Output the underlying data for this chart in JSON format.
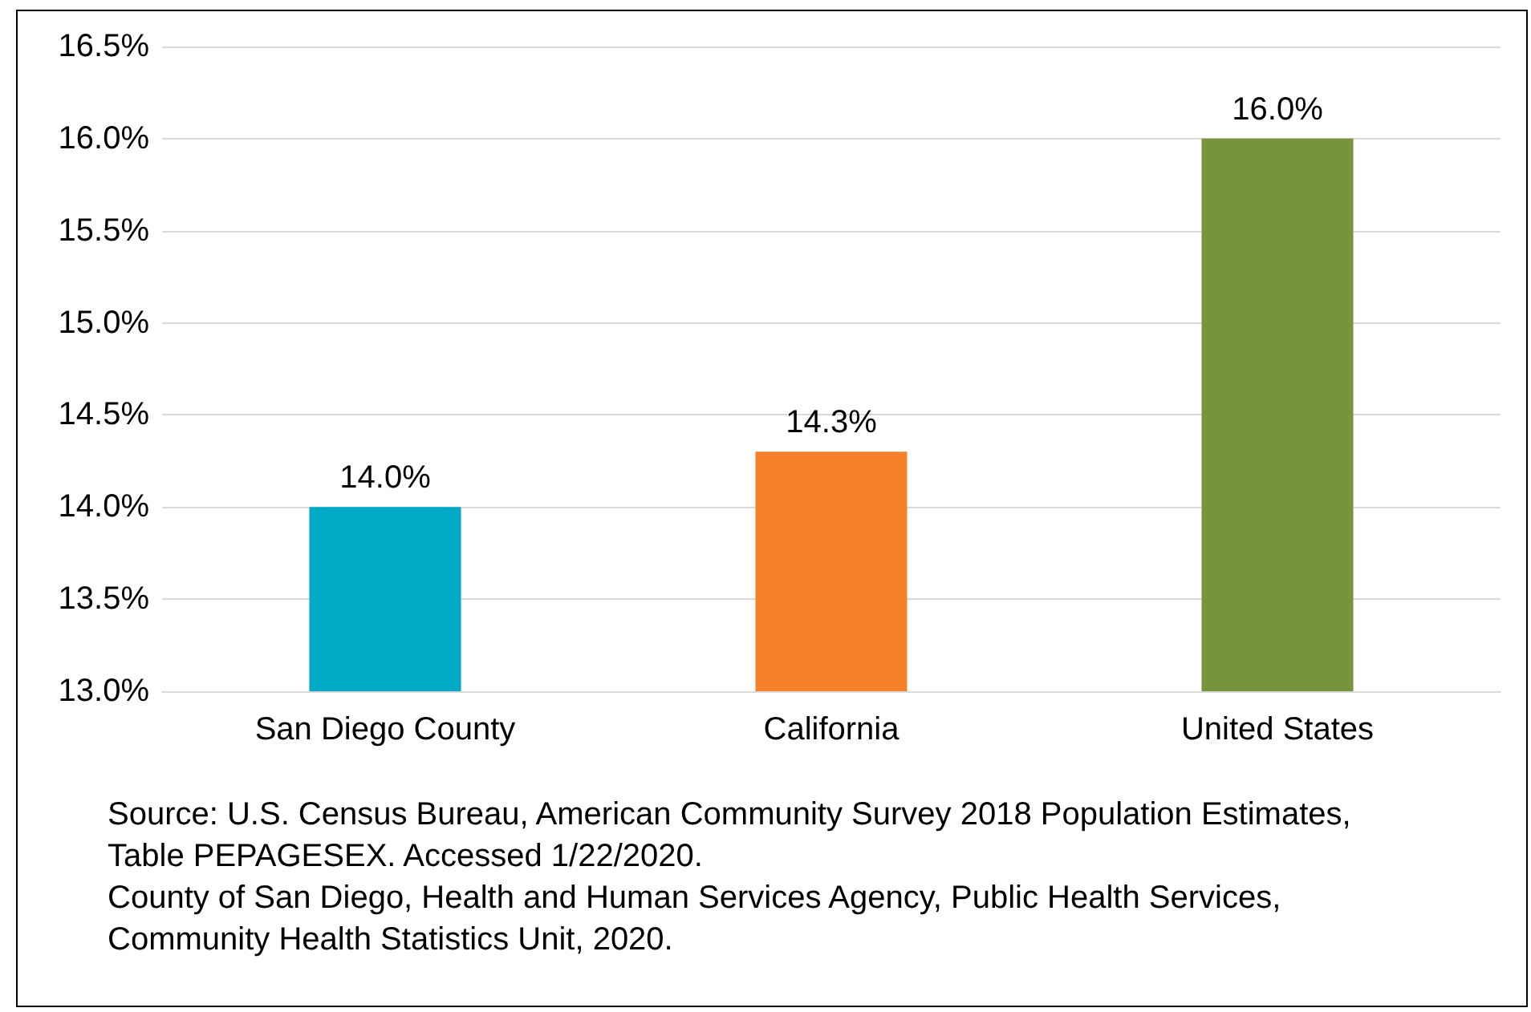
{
  "chart_data": {
    "type": "bar",
    "categories": [
      "San Diego County",
      "California",
      "United States"
    ],
    "values": [
      14.0,
      14.3,
      16.0
    ],
    "colors": [
      "#00aac6",
      "#f5812a",
      "#77933c"
    ],
    "ylim": [
      13.0,
      16.5
    ],
    "yticks": [
      {
        "value": 13.0,
        "label": "13.0%"
      },
      {
        "value": 13.5,
        "label": "13.5%"
      },
      {
        "value": 14.0,
        "label": "14.0%"
      },
      {
        "value": 14.5,
        "label": "14.5%"
      },
      {
        "value": 15.0,
        "label": "15.0%"
      },
      {
        "value": 15.5,
        "label": "15.5%"
      },
      {
        "value": 16.0,
        "label": "16.0%"
      },
      {
        "value": 16.5,
        "label": "16.5%"
      }
    ],
    "value_labels": [
      "14.0%",
      "14.3%",
      "16.0%"
    ],
    "grid": "y",
    "annotations": [
      "Source: U.S. Census Bureau, American Community Survey 2018 Population Estimates, Table PEPAGESEX. Accessed 1/22/2020.",
      "County of San Diego, Health and Human Services Agency, Public Health Services, Community Health Statistics Unit, 2020."
    ]
  }
}
